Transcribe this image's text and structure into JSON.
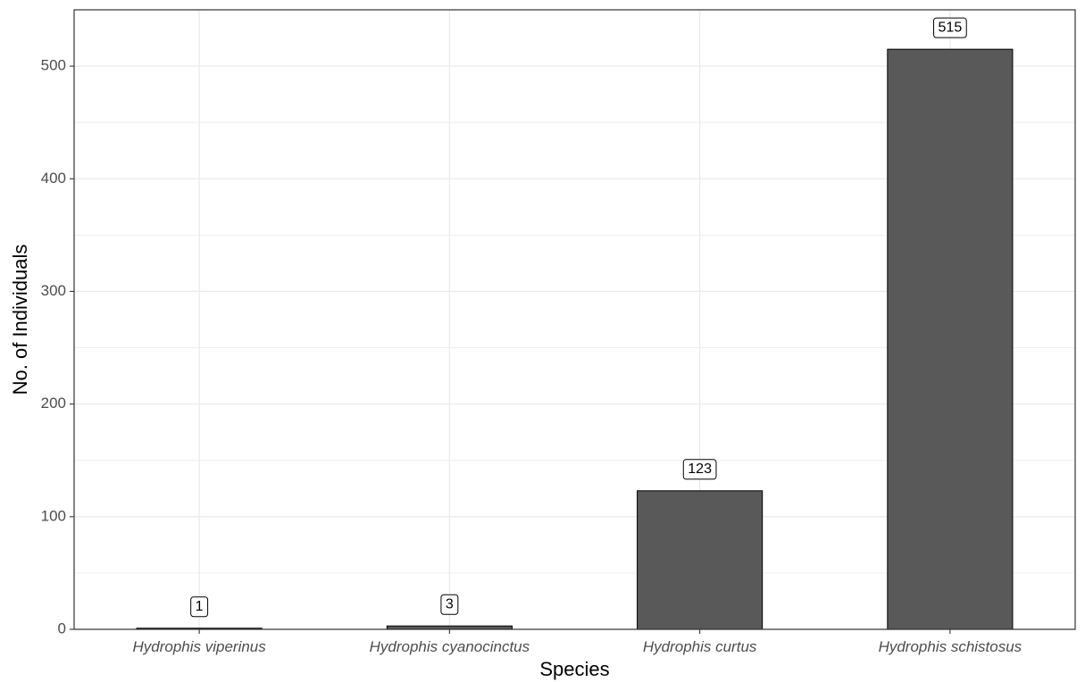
{
  "chart_data": {
    "type": "bar",
    "categories": [
      "Hydrophis viperinus",
      "Hydrophis cyanocinctus",
      "Hydrophis curtus",
      "Hydrophis schistosus"
    ],
    "values": [
      1,
      3,
      123,
      515
    ],
    "data_labels": [
      "1",
      "3",
      "123",
      "515"
    ],
    "xlabel": "Species",
    "ylabel": "No. of Individuals",
    "ylim": [
      0,
      550
    ],
    "yticks": [
      0,
      100,
      200,
      300,
      400,
      500
    ],
    "ytick_labels": [
      "0",
      "100",
      "200",
      "300",
      "400",
      "500"
    ],
    "grid": true,
    "legend": "none",
    "colors": {
      "bar_fill": "#595959",
      "bar_stroke": "#000000",
      "grid": "#ebebeb",
      "panel_border": "#333333",
      "tick_text": "#4d4d4d"
    }
  }
}
